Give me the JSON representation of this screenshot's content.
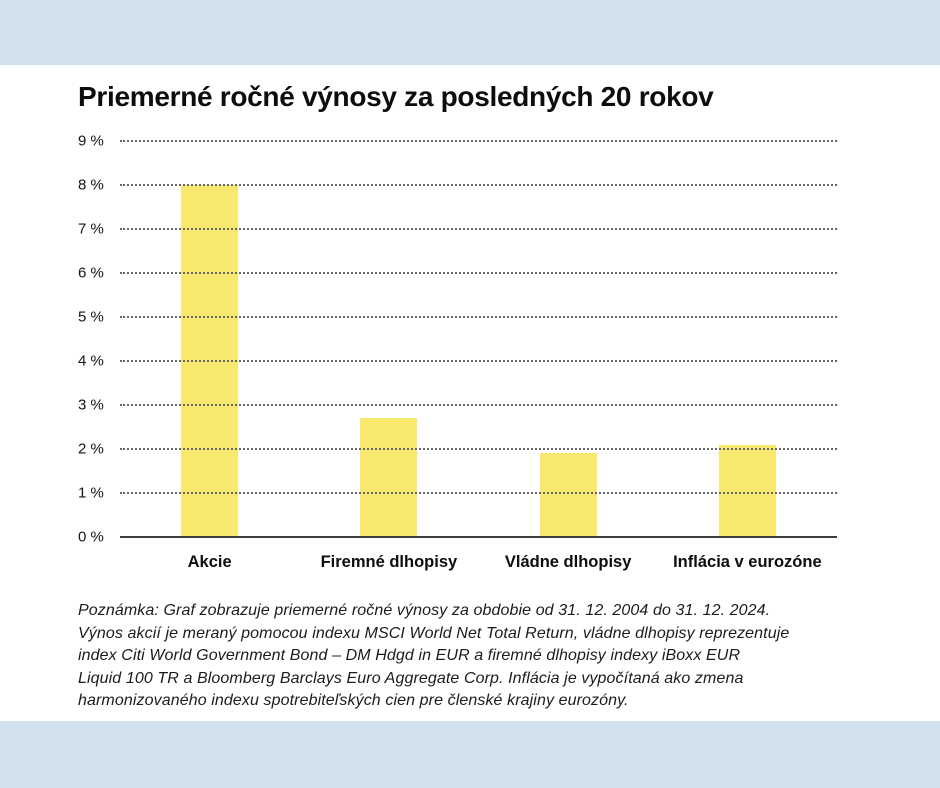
{
  "page": {
    "title": "Priemerné ročné výnosy za posledných 20 rokov",
    "note_lines": [
      "Poznámka: Graf zobrazuje priemerné ročné výnosy za obdobie od 31. 12. 2004 do 31. 12. 2024.",
      "Výnos akcií je meraný pomocou indexu MSCI World Net Total Return, vládne dlhopisy reprezentuje",
      "index Citi World Government Bond – DM Hdgd in EUR a firemné dlhopisy indexy iBoxx EUR",
      "Liquid 100 TR a Bloomberg Barclays Euro Aggregate Corp. Inflácia je vypočítaná ako zmena",
      "harmonizovaného indexu spotrebiteľských cien pre členské krajiny eurozóny."
    ]
  },
  "chart_data": {
    "type": "bar",
    "title": "Priemerné ročné výnosy za posledných 20 rokov",
    "categories": [
      "Akcie",
      "Firemné dlhopisy",
      "Vládne dlhopisy",
      "Inflácia v eurozóne"
    ],
    "values": [
      8.0,
      2.7,
      1.9,
      2.1
    ],
    "unit": "%",
    "xlabel": "",
    "ylabel": "",
    "ylim": [
      0,
      9
    ],
    "ytick_step": 1,
    "ytick_labels": [
      "9 %",
      "8 %",
      "7 %",
      "6 %",
      "5 %",
      "4 %",
      "3 %",
      "2 %",
      "1 %",
      "0 %"
    ],
    "grid": "horizontal-dotted",
    "legend": "none",
    "bar_color": "#f8e86e"
  },
  "colors": {
    "band_blue": "#d0e0ed",
    "background_white": "#ffffff",
    "bar_yellow": "#f8e86e",
    "gridline_gray": "#666666",
    "axis_dark": "#3d3d3d",
    "text_black": "#0d0d0d"
  }
}
